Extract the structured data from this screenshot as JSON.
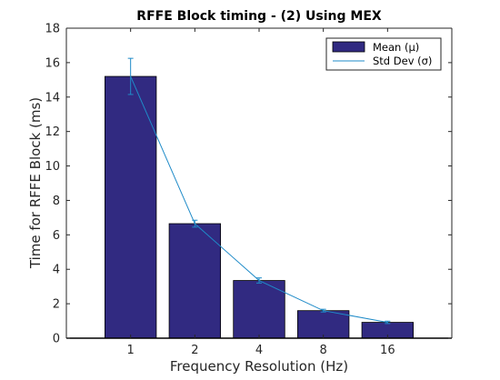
{
  "chart_data": {
    "type": "bar",
    "title": "RFFE Block timing - (2) Using MEX",
    "xlabel": "Frequency Resolution (Hz)",
    "ylabel": "Time for RFFE Block (ms)",
    "categories": [
      "1",
      "2",
      "4",
      "8",
      "16"
    ],
    "ylim": [
      0,
      18
    ],
    "yticks": [
      0,
      2,
      4,
      6,
      8,
      10,
      12,
      14,
      16,
      18
    ],
    "grid": false,
    "legend_position": "top-right",
    "series": [
      {
        "name": "Mean (μ)",
        "kind": "bar",
        "color": "#312a81",
        "values": [
          15.2,
          6.65,
          3.35,
          1.6,
          0.92
        ]
      },
      {
        "name": "Std Dev (σ)",
        "kind": "line-errorbar",
        "color": "#1f8bc8",
        "values": [
          15.2,
          6.65,
          3.35,
          1.6,
          0.92
        ],
        "error": [
          1.05,
          0.2,
          0.15,
          0.08,
          0.07
        ]
      }
    ]
  }
}
